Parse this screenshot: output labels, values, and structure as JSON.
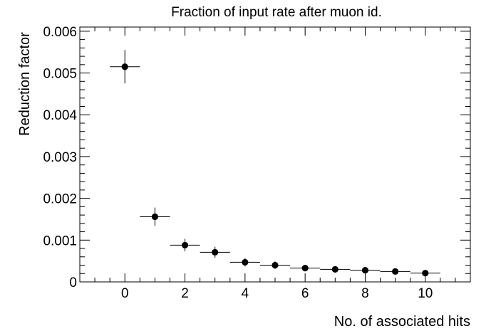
{
  "chart_data": {
    "type": "scatter",
    "title": "Fraction of input rate after muon id.",
    "xlabel": "No. of associated hits",
    "ylabel": "Reduction factor",
    "xlim": [
      -1.5,
      11.5
    ],
    "ylim": [
      0,
      0.0061
    ],
    "xticks": [
      0,
      2,
      4,
      6,
      8,
      10
    ],
    "xtick_labels": [
      "0",
      "2",
      "4",
      "6",
      "8",
      "10"
    ],
    "yticks": [
      0,
      0.001,
      0.002,
      0.003,
      0.004,
      0.005,
      0.006
    ],
    "ytick_labels": [
      "0",
      "0.001",
      "0.002",
      "0.003",
      "0.004",
      "0.005",
      "0.006"
    ],
    "x_bin_half_width": 0.5,
    "x": [
      0,
      1,
      2,
      3,
      4,
      5,
      6,
      7,
      8,
      9,
      10
    ],
    "y": [
      0.00515,
      0.00156,
      0.00088,
      0.00071,
      0.00047,
      0.0004,
      0.00033,
      0.0003,
      0.00028,
      0.00025,
      0.00021
    ],
    "y_err": [
      0.0004,
      0.00022,
      0.00015,
      0.00013,
      0.0001,
      9e-05,
      7e-05,
      6e-05,
      5e-05,
      5e-05,
      4e-05
    ],
    "grid": false,
    "legend": "none"
  }
}
